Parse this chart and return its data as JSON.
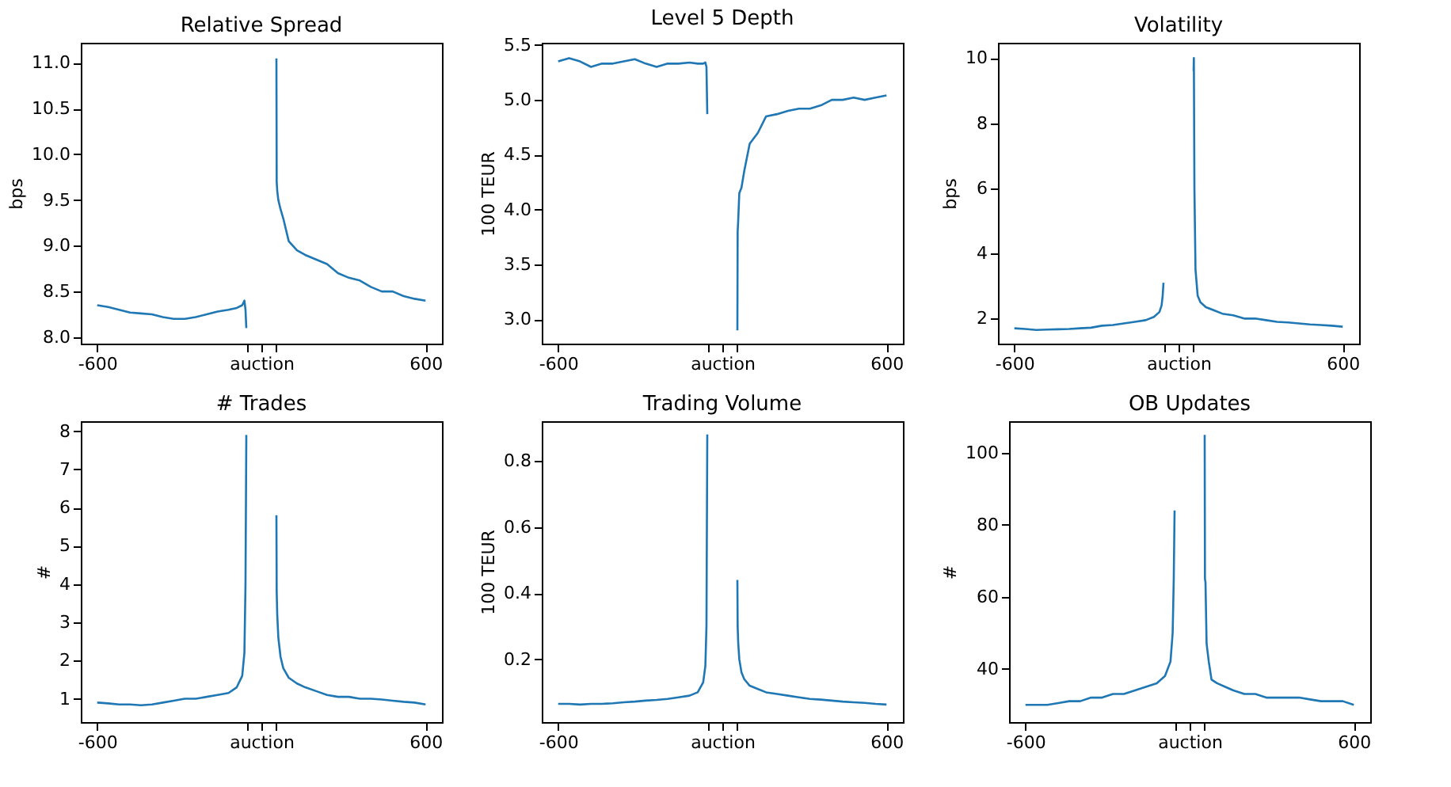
{
  "chart_data": [
    {
      "type": "line",
      "title": "Relative Spread",
      "ylabel": "bps",
      "grid": false,
      "x": [
        -600,
        -560,
        -520,
        -480,
        -440,
        -400,
        -360,
        -320,
        -280,
        -240,
        -200,
        -160,
        -120,
        -90,
        -70,
        -62,
        -58,
        -55,
        0,
        55,
        56,
        58,
        62,
        70,
        80,
        100,
        130,
        160,
        200,
        240,
        280,
        320,
        360,
        400,
        440,
        480,
        520,
        560,
        600
      ],
      "xlim": [
        -660,
        660
      ],
      "xticks": [
        -600,
        {
          "value": -55,
          "label": null
        },
        {
          "value": 0,
          "label": "auction"
        },
        {
          "value": 55,
          "label": null
        },
        600
      ],
      "ylim": [
        7.93,
        11.22
      ],
      "yticks": [
        {
          "value": 8.0,
          "label": "8.0"
        },
        8.5,
        {
          "value": 9.0,
          "label": "9.0"
        },
        9.5,
        {
          "value": 10.0,
          "label": "10.0"
        },
        10.5,
        {
          "value": 11.0,
          "label": "11.0"
        }
      ],
      "series": [
        {
          "color": "#1f77b4",
          "values": [
            8.35,
            8.33,
            8.3,
            8.27,
            8.26,
            8.25,
            8.22,
            8.2,
            8.2,
            8.22,
            8.25,
            8.28,
            8.3,
            8.32,
            8.35,
            8.4,
            8.3,
            8.1,
            null,
            11.05,
            9.7,
            9.6,
            9.5,
            9.4,
            9.3,
            9.05,
            8.95,
            8.9,
            8.85,
            8.8,
            8.7,
            8.65,
            8.62,
            8.55,
            8.5,
            8.5,
            8.45,
            8.42,
            8.4
          ]
        }
      ]
    },
    {
      "type": "line",
      "title": "Level 5 Depth",
      "ylabel": "100 TEUR",
      "grid": false,
      "x": [
        -600,
        -560,
        -520,
        -480,
        -440,
        -400,
        -360,
        -320,
        -280,
        -240,
        -200,
        -160,
        -120,
        -90,
        -70,
        -62,
        -58,
        -55,
        0,
        55,
        56,
        58,
        62,
        70,
        80,
        100,
        130,
        160,
        200,
        240,
        280,
        320,
        360,
        400,
        440,
        480,
        520,
        560,
        600
      ],
      "xlim": [
        -660,
        660
      ],
      "xticks": [
        -600,
        {
          "value": -55,
          "label": null
        },
        {
          "value": 0,
          "label": "auction"
        },
        {
          "value": 55,
          "label": null
        },
        600
      ],
      "ylim": [
        2.78,
        5.52
      ],
      "yticks": [
        {
          "value": 3.0,
          "label": "3.0"
        },
        3.5,
        {
          "value": 4.0,
          "label": "4.0"
        },
        4.5,
        {
          "value": 5.0,
          "label": "5.0"
        },
        5.5
      ],
      "series": [
        {
          "color": "#1f77b4",
          "values": [
            5.35,
            5.38,
            5.35,
            5.3,
            5.33,
            5.33,
            5.35,
            5.37,
            5.33,
            5.3,
            5.33,
            5.33,
            5.34,
            5.33,
            5.33,
            5.34,
            5.3,
            4.87,
            null,
            2.9,
            3.8,
            3.9,
            4.15,
            4.2,
            4.35,
            4.6,
            4.7,
            4.85,
            4.87,
            4.9,
            4.92,
            4.92,
            4.95,
            5.0,
            5.0,
            5.02,
            5.0,
            5.02,
            5.04
          ]
        }
      ]
    },
    {
      "type": "line",
      "title": "Volatility",
      "ylabel": "bps",
      "grid": false,
      "x": [
        -600,
        -560,
        -520,
        -480,
        -440,
        -400,
        -360,
        -320,
        -280,
        -240,
        -200,
        -160,
        -120,
        -90,
        -70,
        -62,
        -58,
        -55,
        0,
        55,
        56,
        58,
        62,
        70,
        80,
        100,
        130,
        160,
        200,
        240,
        280,
        320,
        360,
        400,
        440,
        480,
        520,
        560,
        600
      ],
      "xlim": [
        -660,
        660
      ],
      "xticks": [
        -600,
        {
          "value": -55,
          "label": null
        },
        {
          "value": 0,
          "label": "auction"
        },
        {
          "value": 55,
          "label": null
        },
        600
      ],
      "ylim": [
        1.23,
        10.47
      ],
      "yticks": [
        2,
        4,
        6,
        8,
        10
      ],
      "series": [
        {
          "color": "#1f77b4",
          "values": [
            1.7,
            1.68,
            1.65,
            1.66,
            1.67,
            1.68,
            1.7,
            1.72,
            1.78,
            1.8,
            1.85,
            1.9,
            1.95,
            2.05,
            2.2,
            2.4,
            2.7,
            3.1,
            null,
            9.6,
            10.0,
            6.0,
            3.5,
            2.7,
            2.5,
            2.35,
            2.25,
            2.15,
            2.1,
            2.0,
            2.0,
            1.95,
            1.9,
            1.88,
            1.85,
            1.82,
            1.8,
            1.78,
            1.75
          ]
        }
      ]
    },
    {
      "type": "line",
      "title": "# Trades",
      "ylabel": "#",
      "grid": false,
      "x": [
        -600,
        -560,
        -520,
        -480,
        -440,
        -400,
        -360,
        -320,
        -280,
        -240,
        -200,
        -160,
        -120,
        -90,
        -70,
        -62,
        -58,
        -55,
        0,
        55,
        56,
        58,
        62,
        70,
        80,
        100,
        130,
        160,
        200,
        240,
        280,
        320,
        360,
        400,
        440,
        480,
        520,
        560,
        600
      ],
      "xlim": [
        -660,
        660
      ],
      "xticks": [
        -600,
        {
          "value": -55,
          "label": null
        },
        {
          "value": 0,
          "label": "auction"
        },
        {
          "value": 55,
          "label": null
        },
        600
      ],
      "ylim": [
        0.39,
        8.26
      ],
      "yticks": [
        1,
        2,
        3,
        4,
        5,
        6,
        7,
        8
      ],
      "series": [
        {
          "color": "#1f77b4",
          "values": [
            0.9,
            0.88,
            0.85,
            0.85,
            0.83,
            0.85,
            0.9,
            0.95,
            1.0,
            1.0,
            1.05,
            1.1,
            1.15,
            1.3,
            1.6,
            2.2,
            4.0,
            7.9,
            null,
            5.8,
            3.8,
            3.2,
            2.6,
            2.1,
            1.8,
            1.55,
            1.4,
            1.3,
            1.2,
            1.1,
            1.05,
            1.05,
            1.0,
            1.0,
            0.98,
            0.95,
            0.92,
            0.9,
            0.85
          ]
        }
      ]
    },
    {
      "type": "line",
      "title": "Trading Volume",
      "ylabel": "100 TEUR",
      "grid": false,
      "x": [
        -600,
        -560,
        -520,
        -480,
        -440,
        -400,
        -360,
        -320,
        -280,
        -240,
        -200,
        -160,
        -120,
        -90,
        -70,
        -62,
        -58,
        -55,
        0,
        55,
        56,
        58,
        62,
        70,
        80,
        100,
        130,
        160,
        200,
        240,
        280,
        320,
        360,
        400,
        440,
        480,
        520,
        560,
        600
      ],
      "xlim": [
        -660,
        660
      ],
      "xticks": [
        -600,
        {
          "value": -55,
          "label": null
        },
        {
          "value": 0,
          "label": "auction"
        },
        {
          "value": 55,
          "label": null
        },
        600
      ],
      "ylim": [
        0.01,
        0.92
      ],
      "yticks": [
        0.2,
        0.4,
        0.6,
        0.8
      ],
      "series": [
        {
          "color": "#1f77b4",
          "values": [
            0.065,
            0.065,
            0.063,
            0.065,
            0.065,
            0.067,
            0.07,
            0.072,
            0.075,
            0.077,
            0.08,
            0.085,
            0.09,
            0.1,
            0.13,
            0.18,
            0.3,
            0.88,
            null,
            0.44,
            0.3,
            0.25,
            0.2,
            0.16,
            0.14,
            0.12,
            0.11,
            0.1,
            0.095,
            0.09,
            0.085,
            0.08,
            0.078,
            0.075,
            0.072,
            0.07,
            0.068,
            0.065,
            0.063
          ]
        }
      ]
    },
    {
      "type": "line",
      "title": "OB Updates",
      "ylabel": "#",
      "grid": false,
      "x": [
        -600,
        -560,
        -520,
        -480,
        -440,
        -400,
        -360,
        -320,
        -280,
        -240,
        -200,
        -160,
        -120,
        -90,
        -70,
        -62,
        -58,
        -55,
        0,
        55,
        56,
        58,
        62,
        70,
        80,
        100,
        130,
        160,
        200,
        240,
        280,
        320,
        360,
        400,
        440,
        480,
        520,
        560,
        600
      ],
      "xlim": [
        -660,
        660
      ],
      "xticks": [
        -600,
        {
          "value": -55,
          "label": null
        },
        {
          "value": 0,
          "label": "auction"
        },
        {
          "value": 55,
          "label": null
        },
        600
      ],
      "ylim": [
        25.2,
        108.8
      ],
      "yticks": [
        40,
        60,
        80,
        100
      ],
      "series": [
        {
          "color": "#1f77b4",
          "values": [
            30,
            30,
            30,
            30.5,
            31,
            31,
            32,
            32,
            33,
            33,
            34,
            35,
            36,
            38,
            42,
            50,
            65,
            84,
            null,
            105,
            65,
            64,
            47,
            42,
            37,
            36,
            35,
            34,
            33,
            33,
            32,
            32,
            32,
            32,
            31.5,
            31,
            31,
            31,
            30
          ]
        }
      ]
    }
  ]
}
